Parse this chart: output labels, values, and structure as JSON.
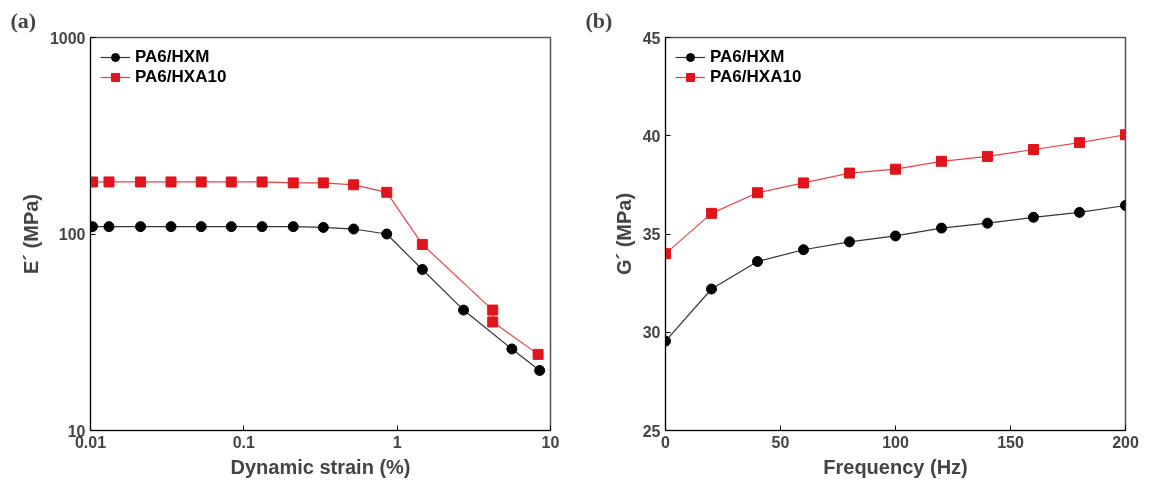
{
  "chart_data": [
    {
      "type": "line",
      "title": "(a)",
      "xlabel": "Dynamic strain (%)",
      "ylabel": "E´ (MPa)",
      "log": "xy",
      "xlim": [
        0.01,
        10
      ],
      "ylim": [
        10,
        1000
      ],
      "xticks": [
        0.01,
        0.1,
        1,
        10
      ],
      "yticks": [
        10,
        100,
        1000
      ],
      "grid": false,
      "legend": "top left",
      "series": [
        {
          "name": "PA6/HXM",
          "color": "#000000",
          "marker": "circle",
          "x": [
            0.0103,
            0.0132,
            0.0212,
            0.0335,
            0.0527,
            0.0828,
            0.1315,
            0.21,
            0.33,
            0.52,
            0.855,
            1.46,
            2.71,
            5.6,
            8.5
          ],
          "values": [
            109,
            109,
            109,
            109,
            109,
            109,
            109,
            109,
            108,
            106,
            100,
            66,
            41,
            26,
            20.2
          ]
        },
        {
          "name": "PA6/HXA10",
          "color": "#e0141b",
          "marker": "square",
          "x": [
            0.0103,
            0.0132,
            0.0212,
            0.0335,
            0.0527,
            0.0828,
            0.1315,
            0.21,
            0.33,
            0.52,
            0.855,
            1.46,
            4.2,
            4.2,
            8.3
          ],
          "values": [
            184,
            184,
            184,
            184,
            184,
            184,
            184,
            182,
            182,
            178,
            163,
            88.5,
            41,
            35.7,
            24.4
          ]
        }
      ]
    },
    {
      "type": "line",
      "title": "(b)",
      "xlabel": "Frequency (Hz)",
      "ylabel": "G´ (MPa)",
      "xlim": [
        0,
        200
      ],
      "ylim": [
        25,
        45
      ],
      "xticks": [
        0,
        50,
        100,
        150,
        200
      ],
      "yticks": [
        25,
        30,
        35,
        40,
        45
      ],
      "grid": false,
      "legend": "top left",
      "series": [
        {
          "name": "PA6/HXM",
          "color": "#000000",
          "marker": "circle",
          "x": [
            0,
            20,
            40,
            60,
            80,
            100,
            120,
            140,
            160,
            180,
            200
          ],
          "values": [
            29.55,
            32.2,
            33.6,
            34.2,
            34.6,
            34.9,
            35.3,
            35.55,
            35.85,
            36.1,
            36.45
          ]
        },
        {
          "name": "PA6/HXA10",
          "color": "#e0141b",
          "marker": "square",
          "x": [
            0,
            20,
            40,
            60,
            80,
            100,
            120,
            140,
            160,
            180,
            200
          ],
          "values": [
            34.0,
            36.05,
            37.1,
            37.6,
            38.1,
            38.3,
            38.7,
            38.95,
            39.3,
            39.65,
            40.05
          ]
        }
      ]
    }
  ]
}
